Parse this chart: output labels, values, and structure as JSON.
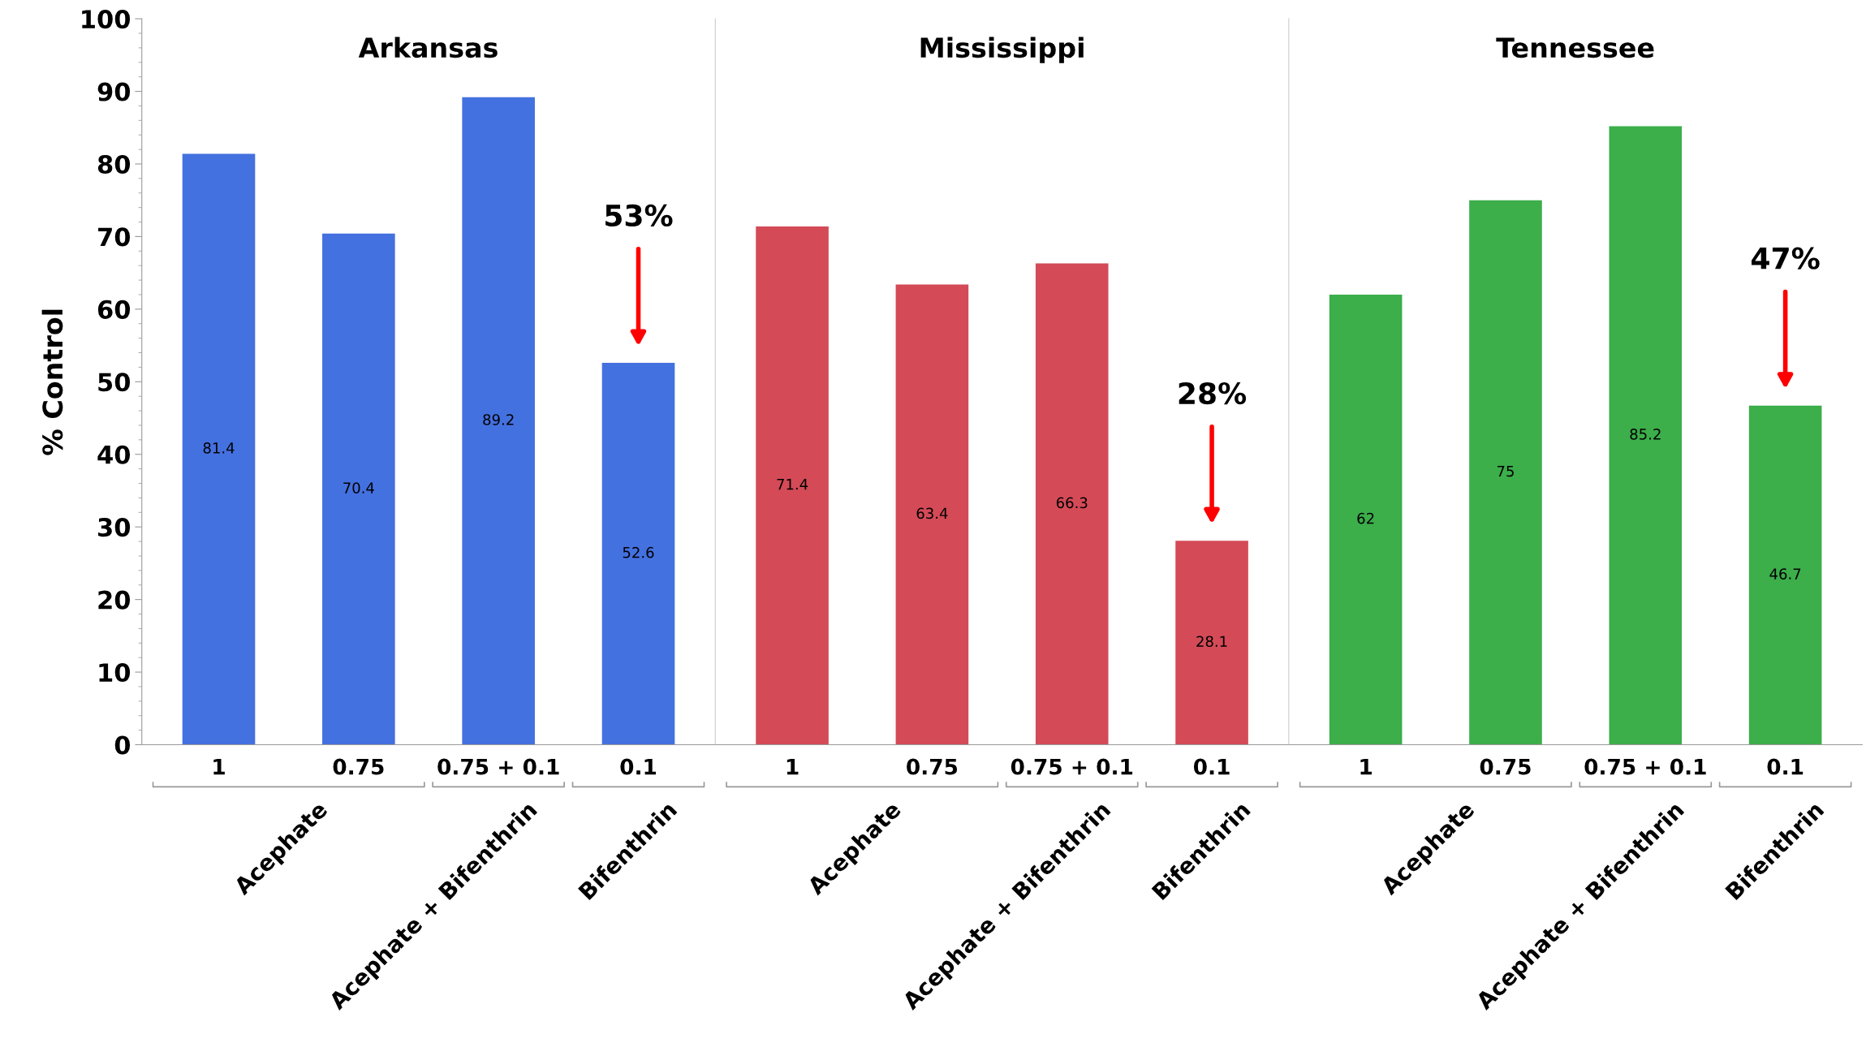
{
  "chart_data": [
    {
      "type": "bar",
      "title": "Arkansas",
      "ylabel": "% Control",
      "categories": [
        "1",
        "0.75",
        "0.75 + 0.1",
        "0.1"
      ],
      "values": [
        81.4,
        70.4,
        89.2,
        52.6
      ],
      "color": "#4471e0",
      "data_labels": true,
      "ylim": [
        0,
        100
      ],
      "yticks": [
        0,
        10,
        20,
        30,
        40,
        50,
        60,
        70,
        80,
        90,
        100
      ],
      "grid": false,
      "annotations": [
        "Acephate",
        "Acephate + Bifenthrin",
        "Bifenthrin",
        "53%"
      ]
    },
    {
      "type": "bar",
      "title": "Mississippi",
      "categories": [
        "1",
        "0.75",
        "0.75 + 0.1",
        "0.1"
      ],
      "values": [
        71.4,
        63.4,
        66.3,
        28.1
      ],
      "color": "#d44a57",
      "data_labels": true,
      "ylim": [
        0,
        100
      ],
      "yticks": [
        0,
        10,
        20,
        30,
        40,
        50,
        60,
        70,
        80,
        90,
        100
      ],
      "grid": false,
      "tick_labels": "x",
      "annotations": [
        "Acephate",
        "Acephate + Bifenthrin",
        "Bifenthrin",
        "28%"
      ]
    },
    {
      "type": "bar",
      "title": "Tennessee",
      "categories": [
        "1",
        "0.75",
        "0.75 + 0.1",
        "0.1"
      ],
      "values": [
        62,
        75,
        85.2,
        46.7
      ],
      "color": "#3cae4a",
      "data_labels": true,
      "ylim": [
        0,
        100
      ],
      "yticks": [
        0,
        10,
        20,
        30,
        40,
        50,
        60,
        70,
        80,
        90,
        100
      ],
      "grid": false,
      "tick_labels": "x",
      "annotations": [
        "Acephate",
        "Acephate + Bifenthrin",
        "Bifenthrin",
        "47%"
      ]
    }
  ]
}
